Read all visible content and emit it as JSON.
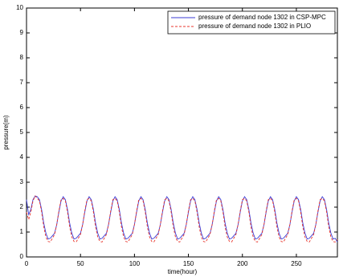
{
  "chart_data": {
    "type": "line",
    "xlabel": "time(hour)",
    "ylabel": "pressure(m)",
    "xlim": [
      0,
      288
    ],
    "xticks": [
      0,
      50,
      100,
      150,
      200,
      250
    ],
    "ylim": [
      0,
      10
    ],
    "yticks": [
      0,
      1,
      2,
      3,
      4,
      5,
      6,
      7,
      8,
      9,
      10
    ],
    "legend": "upper right",
    "x": [
      0,
      2,
      4,
      6,
      8,
      10,
      12,
      14,
      16,
      18,
      20,
      22,
      24,
      26,
      28,
      30,
      32,
      34,
      36,
      38,
      40,
      42,
      44,
      46,
      48,
      50,
      52,
      54,
      56,
      58,
      60,
      62,
      64,
      66,
      68,
      70,
      72,
      74,
      76,
      78,
      80,
      82,
      84,
      86,
      88,
      90,
      92,
      94,
      96,
      98,
      100,
      102,
      104,
      106,
      108,
      110,
      112,
      114,
      116,
      118,
      120,
      122,
      124,
      126,
      128,
      130,
      132,
      134,
      136,
      138,
      140,
      142,
      144,
      146,
      148,
      150,
      152,
      154,
      156,
      158,
      160,
      162,
      164,
      166,
      168,
      170,
      172,
      174,
      176,
      178,
      180,
      182,
      184,
      186,
      188,
      190,
      192,
      194,
      196,
      198,
      200,
      202,
      204,
      206,
      208,
      210,
      212,
      214,
      216,
      218,
      220,
      222,
      224,
      226,
      228,
      230,
      232,
      234,
      236,
      238,
      240,
      242,
      244,
      246,
      248,
      250,
      252,
      254,
      256,
      258,
      260,
      262,
      264,
      266,
      268,
      270,
      272,
      274,
      276,
      278,
      280,
      282,
      284,
      286,
      288
    ],
    "series": [
      {
        "name": "pressure of demand node 1302 in CSP-MPC",
        "color": "#3b3bd6",
        "dash": false,
        "values": [
          2.3,
          1.7,
          1.9,
          2.3,
          2.45,
          2.42,
          2.3,
          1.9,
          1.35,
          0.95,
          0.72,
          0.75,
          0.85,
          0.95,
          1.3,
          1.8,
          2.25,
          2.42,
          2.3,
          1.9,
          1.35,
          0.95,
          0.72,
          0.75,
          0.85,
          0.95,
          1.3,
          1.8,
          2.25,
          2.42,
          2.3,
          1.9,
          1.35,
          0.95,
          0.72,
          0.75,
          0.85,
          0.95,
          1.3,
          1.8,
          2.25,
          2.42,
          2.3,
          1.9,
          1.35,
          0.95,
          0.72,
          0.75,
          0.85,
          0.95,
          1.3,
          1.8,
          2.25,
          2.42,
          2.3,
          1.9,
          1.35,
          0.95,
          0.72,
          0.75,
          0.85,
          0.95,
          1.3,
          1.8,
          2.25,
          2.42,
          2.3,
          1.9,
          1.35,
          0.95,
          0.72,
          0.75,
          0.85,
          0.95,
          1.3,
          1.8,
          2.25,
          2.42,
          2.3,
          1.9,
          1.35,
          0.95,
          0.72,
          0.75,
          0.85,
          0.95,
          1.3,
          1.8,
          2.25,
          2.42,
          2.3,
          1.9,
          1.35,
          0.95,
          0.72,
          0.75,
          0.85,
          0.95,
          1.3,
          1.8,
          2.25,
          2.42,
          2.3,
          1.9,
          1.35,
          0.95,
          0.72,
          0.75,
          0.85,
          0.95,
          1.3,
          1.8,
          2.25,
          2.42,
          2.3,
          1.9,
          1.35,
          0.95,
          0.72,
          0.75,
          0.85,
          0.95,
          1.3,
          1.8,
          2.25,
          2.42,
          2.3,
          1.9,
          1.35,
          0.95,
          0.72,
          0.75,
          0.85,
          0.95,
          1.3,
          1.8,
          2.25,
          2.42,
          2.3,
          1.9,
          1.35,
          0.95,
          0.72,
          0.75,
          0.6
        ]
      },
      {
        "name": "pressure of demand node 1302 in PLIO",
        "color": "#e8342c",
        "dash": true,
        "values": [
          1.8,
          1.5,
          1.8,
          2.25,
          2.45,
          2.35,
          2.25,
          1.8,
          1.2,
          0.8,
          0.62,
          0.6,
          0.75,
          0.9,
          1.3,
          1.85,
          2.3,
          2.35,
          2.25,
          1.8,
          1.2,
          0.8,
          0.62,
          0.6,
          0.75,
          0.9,
          1.3,
          1.85,
          2.3,
          2.35,
          2.25,
          1.8,
          1.2,
          0.8,
          0.62,
          0.6,
          0.75,
          0.9,
          1.3,
          1.85,
          2.3,
          2.35,
          2.25,
          1.8,
          1.2,
          0.8,
          0.62,
          0.6,
          0.75,
          0.9,
          1.3,
          1.85,
          2.3,
          2.35,
          2.25,
          1.8,
          1.2,
          0.8,
          0.62,
          0.6,
          0.75,
          0.9,
          1.3,
          1.85,
          2.3,
          2.35,
          2.25,
          1.8,
          1.2,
          0.8,
          0.62,
          0.6,
          0.75,
          0.9,
          1.3,
          1.85,
          2.3,
          2.35,
          2.25,
          1.8,
          1.2,
          0.8,
          0.62,
          0.6,
          0.75,
          0.9,
          1.3,
          1.85,
          2.3,
          2.35,
          2.25,
          1.8,
          1.2,
          0.8,
          0.62,
          0.6,
          0.75,
          0.9,
          1.3,
          1.85,
          2.3,
          2.35,
          2.25,
          1.8,
          1.2,
          0.8,
          0.62,
          0.6,
          0.75,
          0.9,
          1.3,
          1.85,
          2.3,
          2.35,
          2.25,
          1.8,
          1.2,
          0.8,
          0.62,
          0.6,
          0.75,
          0.9,
          1.3,
          1.85,
          2.3,
          2.35,
          2.25,
          1.8,
          1.2,
          0.8,
          0.62,
          0.6,
          0.75,
          0.9,
          1.3,
          1.85,
          2.3,
          2.35,
          2.25,
          1.8,
          1.2,
          0.8,
          0.62,
          0.6,
          0.7
        ]
      }
    ]
  }
}
